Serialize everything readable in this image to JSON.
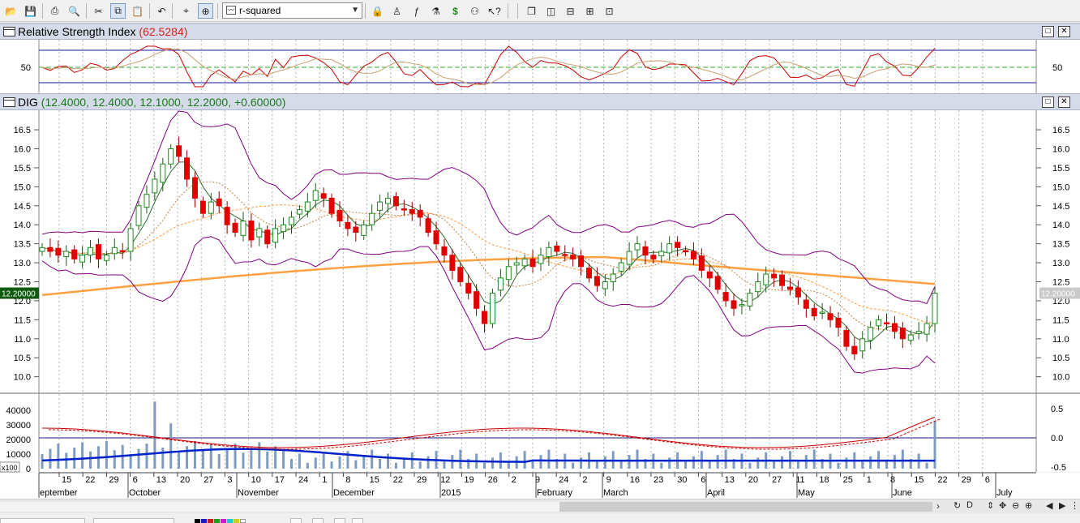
{
  "toolbar": {
    "indicator_select": "r-squared",
    "buttons": [
      {
        "name": "open-icon",
        "glyph": "📂"
      },
      {
        "name": "save-icon",
        "glyph": "💾"
      },
      {
        "name": "print-icon",
        "glyph": "⎙"
      },
      {
        "name": "print-preview-icon",
        "glyph": "🔍"
      },
      {
        "name": "cut-icon",
        "glyph": "✂"
      },
      {
        "name": "copy-icon",
        "glyph": "⧉"
      },
      {
        "name": "paste-icon",
        "glyph": "📋"
      },
      {
        "name": "undo-icon",
        "glyph": "↶"
      },
      {
        "name": "crosshair-icon",
        "glyph": "⌖"
      },
      {
        "name": "zoom-icon",
        "glyph": "⊕"
      },
      {
        "name": "lock-icon",
        "glyph": "🔒"
      },
      {
        "name": "expert-icon",
        "glyph": "♙"
      },
      {
        "name": "formula-icon",
        "glyph": "ƒ"
      },
      {
        "name": "system-tester-icon",
        "glyph": "⚗"
      },
      {
        "name": "dollar-icon",
        "glyph": "$"
      },
      {
        "name": "explorer-icon",
        "glyph": "⚇"
      },
      {
        "name": "help-pointer-icon",
        "glyph": "↖?"
      },
      {
        "name": "cascade-windows-icon",
        "glyph": "❐"
      },
      {
        "name": "tile-vertical-icon",
        "glyph": "◫"
      },
      {
        "name": "tile-horizontal-icon",
        "glyph": "⊟"
      },
      {
        "name": "tile-grid-icon",
        "glyph": "⊞"
      },
      {
        "name": "arrange-icon",
        "glyph": "⊡"
      }
    ]
  },
  "rsi_pane": {
    "name": "Relative Strength Index",
    "value": "(62.5284)",
    "axis_label": "50"
  },
  "price_pane": {
    "symbol": "DIG",
    "ohlc": "(12.4000, 12.4000, 12.1000, 12.2000, +0.60000)",
    "last_price_tag": "12.20000",
    "y_ticks": [
      "16.5",
      "16.0",
      "15.5",
      "15.0",
      "14.5",
      "14.0",
      "13.5",
      "13.0",
      "12.5",
      "12.0",
      "11.5",
      "11.0",
      "10.5",
      "10.0"
    ]
  },
  "volume_pane": {
    "left_ticks": [
      "40000",
      "30000",
      "20000",
      "10000",
      "0"
    ],
    "multiplier": "x100",
    "right_ticks": [
      "0.5",
      "0.0",
      "-0.5"
    ]
  },
  "date_axis": {
    "days": [
      "15",
      "22",
      "29",
      "6",
      "13",
      "20",
      "27",
      "3",
      "10",
      "17",
      "24",
      "1",
      "8",
      "15",
      "22",
      "29",
      "12",
      "19",
      "26",
      "2",
      "9",
      "24",
      "2",
      "9",
      "16",
      "23",
      "30",
      "6",
      "13",
      "20",
      "27",
      "11",
      "18",
      "25",
      "1",
      "8",
      "15",
      "22",
      "29",
      "6"
    ],
    "months": [
      "eptember",
      "October",
      "November",
      "December",
      "2015",
      "February",
      "March",
      "April",
      "May",
      "June",
      "July"
    ]
  },
  "colors": {
    "up_candle": "#1e8a1e",
    "down_candle": "#e00000",
    "bollinger": "#800080",
    "long_ma": "#ffa040",
    "pane_bar": "#d6dbe9",
    "volume_bar": "#7f9cc0",
    "obv_line": "#0022cc"
  },
  "chart_data": {
    "type": "candlestick",
    "symbol": "DIG",
    "ylim": [
      9.8,
      16.8
    ],
    "last_close": 12.2,
    "x_range": [
      "2014-09-08",
      "2015-07-06"
    ],
    "closes": [
      13.4,
      13.3,
      13.2,
      13.3,
      13.1,
      13.2,
      13.4,
      13.1,
      13.2,
      13.4,
      13.3,
      13.9,
      14.5,
      14.8,
      15.2,
      15.6,
      16.0,
      15.8,
      15.2,
      14.7,
      14.3,
      14.6,
      14.5,
      14.0,
      13.8,
      14.1,
      13.6,
      13.9,
      13.5,
      13.9,
      14.0,
      14.2,
      14.4,
      14.6,
      14.9,
      14.7,
      14.3,
      14.1,
      13.9,
      13.8,
      14.0,
      14.3,
      14.6,
      14.7,
      14.5,
      14.4,
      14.3,
      14.2,
      13.8,
      13.5,
      13.2,
      12.8,
      12.5,
      12.2,
      11.8,
      11.4,
      12.2,
      12.6,
      12.9,
      13.0,
      13.1,
      12.9,
      13.2,
      13.4,
      13.3,
      13.2,
      13.1,
      12.9,
      12.6,
      12.4,
      12.5,
      12.7,
      13.0,
      13.3,
      13.5,
      13.2,
      13.1,
      13.3,
      13.5,
      13.4,
      13.3,
      13.1,
      12.8,
      12.6,
      12.3,
      12.0,
      11.8,
      11.9,
      12.2,
      12.5,
      12.7,
      12.6,
      12.4,
      12.3,
      12.1,
      11.8,
      11.6,
      11.7,
      11.5,
      11.3,
      10.8,
      10.6,
      11.0,
      11.3,
      11.5,
      11.4,
      11.2,
      11.0,
      11.1,
      11.2,
      11.4,
      12.2
    ]
  }
}
